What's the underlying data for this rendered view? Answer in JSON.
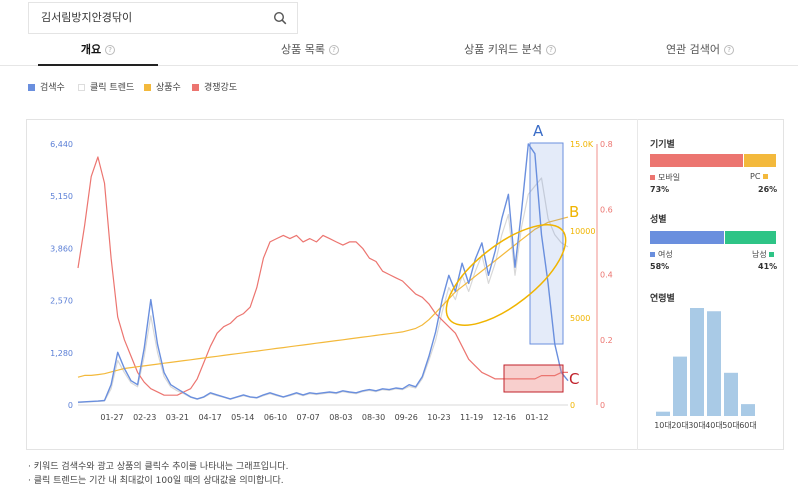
{
  "search": {
    "value": "김서림방지안경닦이"
  },
  "tabs": [
    {
      "label": "개요",
      "active": true
    },
    {
      "label": "상품 목록",
      "active": false
    },
    {
      "label": "상품 키워드 분석",
      "active": false
    },
    {
      "label": "연관 검색어",
      "active": false
    }
  ],
  "legend": [
    {
      "label": "검색수",
      "color": "#6a8fde"
    },
    {
      "label": "클릭 트렌드",
      "color": "#dddddd"
    },
    {
      "label": "상품수",
      "color": "#f3b93c"
    },
    {
      "label": "경쟁강도",
      "color": "#ec7570"
    }
  ],
  "chart_data": {
    "type": "line",
    "x_ticks": [
      "01-27",
      "02-23",
      "03-21",
      "04-17",
      "05-14",
      "06-10",
      "07-07",
      "08-03",
      "08-30",
      "09-26",
      "10-23",
      "11-19",
      "12-16",
      "01-12"
    ],
    "y_left_ticks": [
      "6,440",
      "5,150",
      "3,860",
      "2,570",
      "1,280",
      "0"
    ],
    "y_left_lim": [
      0,
      6440
    ],
    "y_mid_ticks": [
      "15.0K",
      "10000",
      "5000",
      "0"
    ],
    "y_mid_lim": [
      0,
      15000
    ],
    "y_right_ticks": [
      "0.8",
      "0.6",
      "0.4",
      "0.2",
      "0"
    ],
    "y_right_lim": [
      0,
      0.8
    ],
    "series": [
      {
        "name": "검색수",
        "color": "#6a8fde",
        "axis": "left",
        "values": [
          70,
          80,
          90,
          95,
          110,
          500,
          1300,
          900,
          600,
          500,
          1400,
          2600,
          1500,
          800,
          500,
          400,
          300,
          200,
          150,
          200,
          300,
          250,
          200,
          150,
          200,
          250,
          200,
          180,
          250,
          300,
          250,
          200,
          250,
          300,
          250,
          300,
          280,
          300,
          320,
          300,
          350,
          320,
          300,
          350,
          380,
          350,
          400,
          380,
          420,
          400,
          500,
          450,
          700,
          1200,
          1800,
          2600,
          3200,
          2800,
          3500,
          3000,
          3600,
          4000,
          3200,
          3800,
          4600,
          5200,
          3400,
          4800,
          6440,
          6200,
          4200,
          3000,
          1500,
          800,
          600
        ]
      },
      {
        "name": "클릭 트렌드",
        "color": "#d8d8d8",
        "axis": "left",
        "values": [
          60,
          70,
          80,
          90,
          100,
          400,
          1100,
          800,
          550,
          450,
          1200,
          2200,
          1300,
          700,
          450,
          350,
          280,
          190,
          140,
          190,
          280,
          230,
          190,
          140,
          190,
          230,
          190,
          170,
          230,
          280,
          230,
          190,
          230,
          280,
          230,
          280,
          260,
          280,
          300,
          280,
          330,
          300,
          280,
          330,
          360,
          330,
          380,
          360,
          400,
          380,
          460,
          420,
          650,
          1100,
          1600,
          2300,
          2900,
          2600,
          3200,
          2800,
          3300,
          3700,
          3000,
          3500,
          4200,
          4700,
          3200,
          4400,
          5200,
          5400,
          5600,
          4600,
          4200,
          4000,
          3900
        ]
      },
      {
        "name": "상품수",
        "color": "#f3b93c",
        "axis": "mid",
        "values": [
          1600,
          1700,
          1700,
          1750,
          1800,
          1900,
          2000,
          2100,
          2150,
          2200,
          2250,
          2300,
          2350,
          2400,
          2450,
          2500,
          2550,
          2600,
          2650,
          2700,
          2750,
          2800,
          2850,
          2900,
          2950,
          3000,
          3050,
          3100,
          3150,
          3200,
          3250,
          3300,
          3350,
          3400,
          3450,
          3500,
          3550,
          3600,
          3650,
          3700,
          3750,
          3800,
          3850,
          3900,
          3950,
          4000,
          4050,
          4100,
          4150,
          4200,
          4300,
          4400,
          4600,
          4900,
          5300,
          5700,
          6100,
          6500,
          6800,
          7100,
          7400,
          7700,
          8000,
          8300,
          8600,
          8900,
          9200,
          9500,
          9800,
          10100,
          10300,
          10500,
          10600,
          10700,
          10800
        ]
      },
      {
        "name": "경쟁강도",
        "color": "#ec7570",
        "axis": "right",
        "values": [
          0.42,
          0.55,
          0.7,
          0.76,
          0.68,
          0.45,
          0.27,
          0.2,
          0.15,
          0.1,
          0.07,
          0.05,
          0.04,
          0.03,
          0.03,
          0.03,
          0.04,
          0.05,
          0.08,
          0.13,
          0.18,
          0.22,
          0.24,
          0.25,
          0.27,
          0.28,
          0.3,
          0.36,
          0.45,
          0.5,
          0.51,
          0.52,
          0.51,
          0.52,
          0.5,
          0.51,
          0.5,
          0.52,
          0.51,
          0.5,
          0.49,
          0.5,
          0.5,
          0.48,
          0.45,
          0.44,
          0.41,
          0.4,
          0.39,
          0.38,
          0.36,
          0.34,
          0.33,
          0.31,
          0.28,
          0.26,
          0.24,
          0.22,
          0.18,
          0.14,
          0.12,
          0.1,
          0.09,
          0.08,
          0.08,
          0.08,
          0.08,
          0.08,
          0.08,
          0.08,
          0.09,
          0.09,
          0.09,
          0.1,
          0.1
        ]
      }
    ],
    "annotations": [
      {
        "label": "A",
        "color": "#3b6dc7"
      },
      {
        "label": "B",
        "color": "#f0b400"
      },
      {
        "label": "C",
        "color": "#c0202a"
      }
    ]
  },
  "side": {
    "device": {
      "title": "기기별",
      "mobile_label": "모바일",
      "mobile_pct": "73%",
      "mobile_value": 73,
      "mobile_color": "#ec7570",
      "pc_label": "PC",
      "pc_pct": "26%",
      "pc_value": 26,
      "pc_color": "#f3b93c"
    },
    "gender": {
      "title": "성별",
      "female_label": "여성",
      "female_pct": "58%",
      "female_value": 58,
      "female_color": "#6a8fde",
      "male_label": "남성",
      "male_pct": "41%",
      "male_value": 41,
      "male_color": "#2ec486"
    },
    "age": {
      "title": "연령별",
      "bars": [
        {
          "label": "10대",
          "value": 4
        },
        {
          "label": "20대",
          "value": 55
        },
        {
          "label": "30대",
          "value": 100
        },
        {
          "label": "40대",
          "value": 97
        },
        {
          "label": "50대",
          "value": 40
        },
        {
          "label": "60대",
          "value": 11
        }
      ],
      "color": "#a9cae6"
    }
  },
  "notes": [
    "· 키워드 검색수와 광고 상품의 클릭수 추이를 나타내는 그래프입니다.",
    "· 클릭 트렌드는 기간 내 최대값이 100일 때의 상대값을 의미합니다."
  ]
}
